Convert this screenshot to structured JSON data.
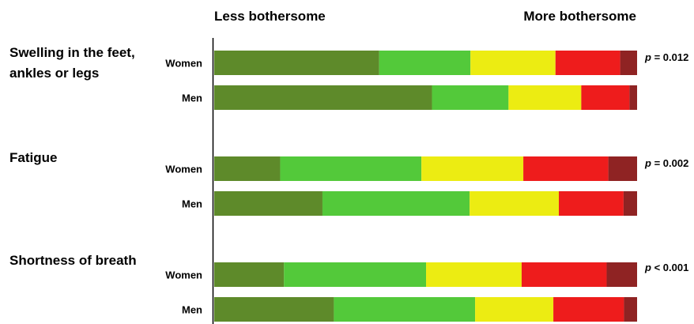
{
  "chart_data": {
    "type": "bar",
    "stacked": true,
    "normalized": true,
    "header": {
      "left": "Less bothersome",
      "right": "More bothersome"
    },
    "groups": [
      {
        "label": "Swelling in the feet, ankles or legs",
        "label_lines": [
          "Swelling in the feet,",
          "ankles or legs"
        ],
        "p_value": {
          "prefix": "p",
          "text": " = 0.012"
        },
        "rows": [
          {
            "label": "Women",
            "values": [
              39.0,
              21.6,
              20.1,
              15.3,
              4.0
            ]
          },
          {
            "label": "Men",
            "values": [
              51.5,
              18.1,
              17.2,
              11.4,
              1.8
            ]
          }
        ]
      },
      {
        "label": "Fatigue",
        "label_lines": [
          "Fatigue"
        ],
        "p_value": {
          "prefix": "p",
          "text": " = 0.002"
        },
        "rows": [
          {
            "label": "Women",
            "values": [
              15.6,
              33.4,
              24.1,
              20.1,
              6.8
            ]
          },
          {
            "label": "Men",
            "values": [
              25.6,
              34.8,
              21.1,
              15.3,
              3.2
            ]
          }
        ]
      },
      {
        "label": "Shortness of breath",
        "label_lines": [
          "Shortness of breath"
        ],
        "p_value": {
          "prefix": "p",
          "text": " < 0.001"
        },
        "rows": [
          {
            "label": "Women",
            "values": [
              16.5,
              33.6,
              22.6,
              20.1,
              7.2
            ]
          },
          {
            "label": "Men",
            "values": [
              28.3,
              33.4,
              18.5,
              16.7,
              3.1
            ]
          }
        ]
      }
    ],
    "segment_colors": [
      "#5e8a2a",
      "#53c93a",
      "#ecec12",
      "#ee1c1c",
      "#8f2323"
    ],
    "xlim": [
      0,
      100
    ],
    "legend": "none",
    "grid": false
  }
}
